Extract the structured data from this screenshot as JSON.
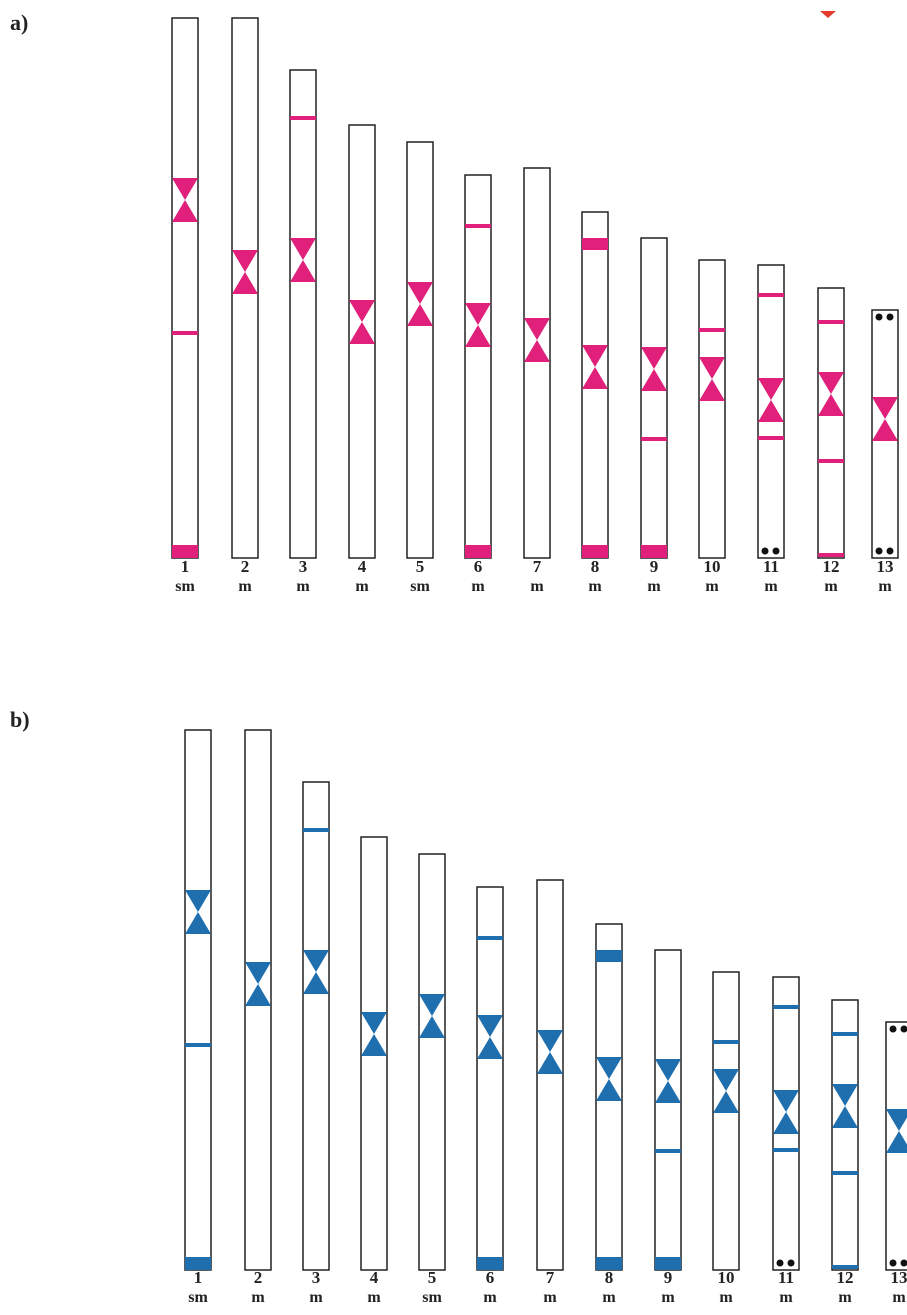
{
  "panels": [
    {
      "label": "a)",
      "chromosomes": [
        {
          "number": 1,
          "type": "sm"
        },
        {
          "number": 2,
          "type": "m"
        },
        {
          "number": 3,
          "type": "m"
        },
        {
          "number": 4,
          "type": "m"
        },
        {
          "number": 5,
          "type": "sm"
        },
        {
          "number": 6,
          "type": "m"
        },
        {
          "number": 7,
          "type": "m"
        },
        {
          "number": 8,
          "type": "m"
        },
        {
          "number": 9,
          "type": "m"
        },
        {
          "number": 10,
          "type": "m"
        },
        {
          "number": 11,
          "type": "m"
        },
        {
          "number": 12,
          "type": "m"
        },
        {
          "number": 13,
          "type": "m"
        }
      ]
    },
    {
      "label": "b)",
      "chromosomes": [
        {
          "number": 1,
          "type": "sm"
        },
        {
          "number": 2,
          "type": "m"
        },
        {
          "number": 3,
          "type": "m"
        },
        {
          "number": 4,
          "type": "m"
        },
        {
          "number": 5,
          "type": "sm"
        },
        {
          "number": 6,
          "type": "m"
        },
        {
          "number": 7,
          "type": "m"
        },
        {
          "number": 8,
          "type": "m"
        },
        {
          "number": 9,
          "type": "m"
        },
        {
          "number": 10,
          "type": "m"
        },
        {
          "number": 11,
          "type": "m"
        },
        {
          "number": 12,
          "type": "m"
        },
        {
          "number": 13,
          "type": "m"
        }
      ]
    }
  ]
}
